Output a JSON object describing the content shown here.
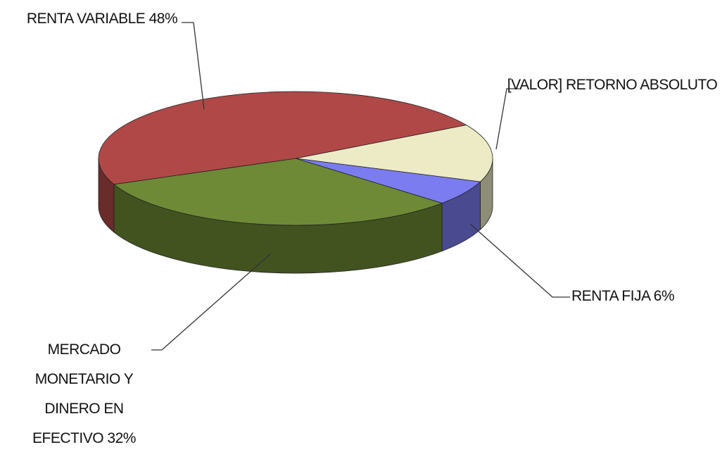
{
  "chart_data": {
    "type": "pie",
    "categories": [
      "RENTA VARIABLE",
      "RETORNO ABSOLUTO",
      "RENTA FIJA",
      "MERCADO MONETARIO Y DINERO EN EFECTIVO"
    ],
    "values": [
      48,
      14,
      6,
      32
    ],
    "value_labels": [
      "48%",
      "[VALOR]",
      "6%",
      "32%"
    ],
    "colors": [
      "#b04848",
      "#ecebc6",
      "#7b7cf0",
      "#6e8a36"
    ]
  }
}
